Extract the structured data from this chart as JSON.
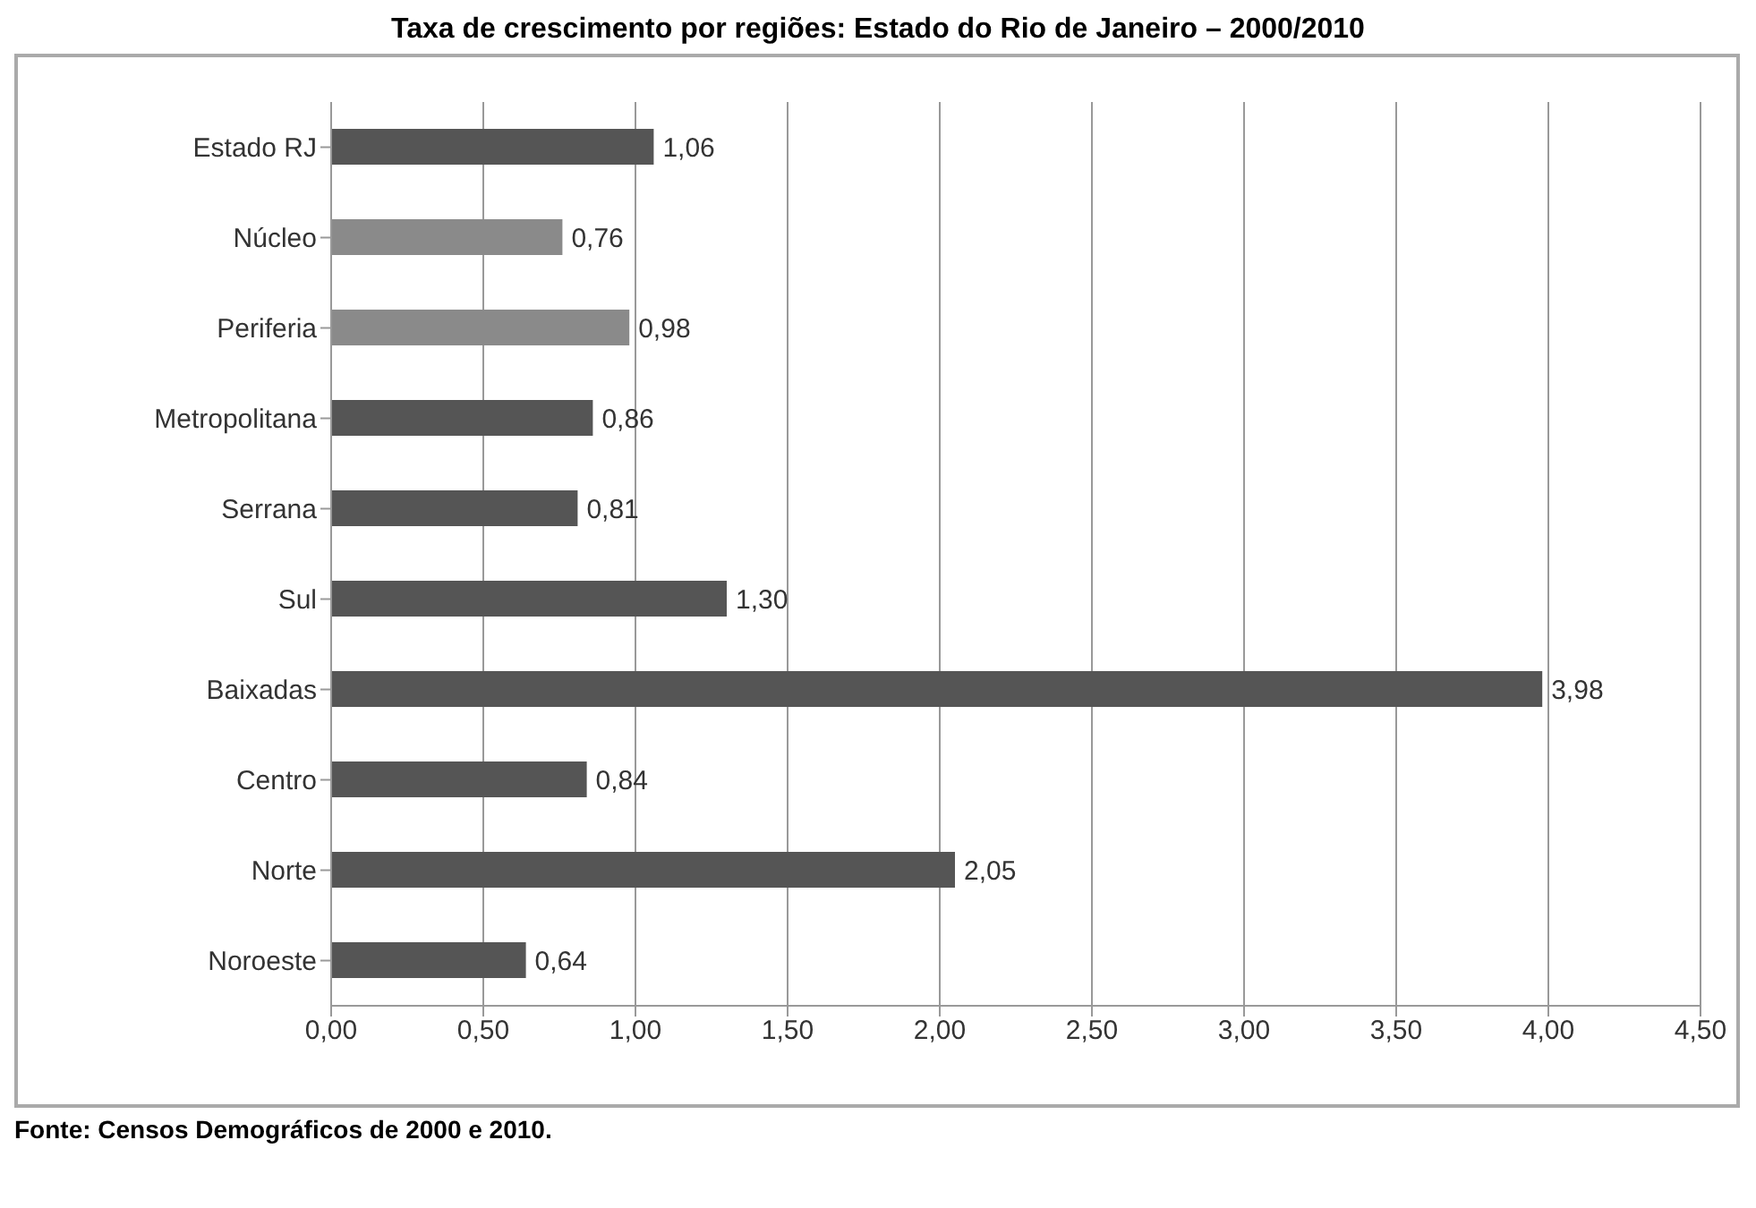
{
  "chart_data": {
    "type": "bar",
    "orientation": "horizontal",
    "title": "Taxa de crescimento por regiões: Estado do Rio de Janeiro – 2000/2010",
    "categories": [
      "Estado RJ",
      "Núcleo",
      "Periferia",
      "Metropolitana",
      "Serrana",
      "Sul",
      "Baixadas",
      "Centro",
      "Norte",
      "Noroeste"
    ],
    "values": [
      1.06,
      0.76,
      0.98,
      0.86,
      0.81,
      1.3,
      3.98,
      0.84,
      2.05,
      0.64
    ],
    "value_labels": [
      "1,06",
      "0,76",
      "0,98",
      "0,86",
      "0,81",
      "1,30",
      "3,98",
      "0,84",
      "2,05",
      "0,64"
    ],
    "colors": [
      "#555555",
      "#8a8a8a",
      "#8a8a8a",
      "#555555",
      "#555555",
      "#555555",
      "#555555",
      "#555555",
      "#555555",
      "#555555"
    ],
    "xlim": [
      0,
      4.5
    ],
    "xticks": [
      {
        "value": 0,
        "label": "0,00"
      },
      {
        "value": 0.5,
        "label": "0,50"
      },
      {
        "value": 1,
        "label": "1,00"
      },
      {
        "value": 1.5,
        "label": "1,50"
      },
      {
        "value": 2,
        "label": "2,00"
      },
      {
        "value": 2.5,
        "label": "2,50"
      },
      {
        "value": 3,
        "label": "3,00"
      },
      {
        "value": 3.5,
        "label": "3,50"
      },
      {
        "value": 4,
        "label": "4,00"
      },
      {
        "value": 4.5,
        "label": "4,50"
      }
    ],
    "grid": "x",
    "legend": false,
    "annotations": [
      "Fonte: Censos Demográficos de 2000 e 2010."
    ]
  }
}
